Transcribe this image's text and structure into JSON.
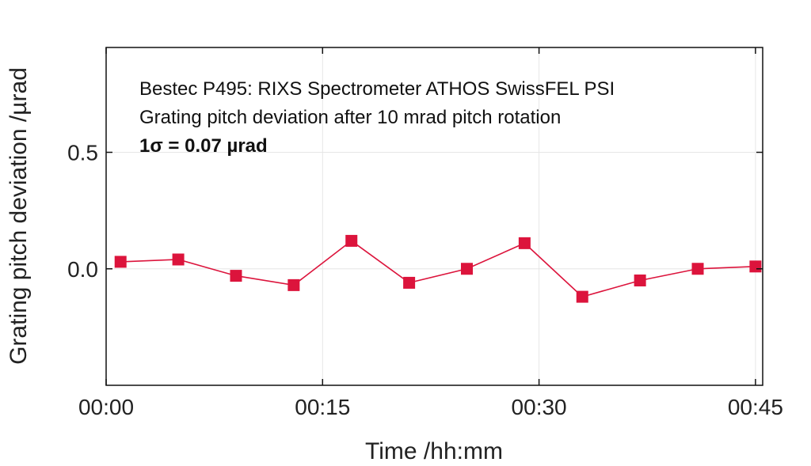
{
  "chart_data": {
    "type": "line",
    "xlabel": "Time /hh:mm",
    "ylabel": "Grating pitch deviation /µrad",
    "annotations": [
      "Bestec P495: RIXS Spectrometer ATHOS SwissFEL PSI",
      "Grating pitch deviation after 10 mrad pitch rotation",
      "1σ = 0.07 µrad"
    ],
    "xlim_minutes": [
      0,
      45.5
    ],
    "ylim": [
      -0.5,
      0.95
    ],
    "x_ticks": [
      {
        "value": 0,
        "label": "00:00"
      },
      {
        "value": 15,
        "label": "00:15"
      },
      {
        "value": 30,
        "label": "00:30"
      },
      {
        "value": 45,
        "label": "00:45"
      }
    ],
    "y_ticks": [
      {
        "value": 0.0,
        "label": "0.0"
      },
      {
        "value": 0.5,
        "label": "0.5"
      }
    ],
    "grid": true,
    "color": "#dc143c",
    "series": [
      {
        "x": [
          "00:01",
          "00:05",
          "00:09",
          "00:13",
          "00:17",
          "00:21",
          "00:25",
          "00:29",
          "00:33",
          "00:37",
          "00:41",
          "00:45"
        ],
        "x_minutes": [
          1,
          5,
          9,
          13,
          17,
          21,
          25,
          29,
          33,
          37,
          41,
          45
        ],
        "values": [
          0.03,
          0.04,
          -0.03,
          -0.07,
          0.12,
          -0.06,
          0.0,
          0.11,
          -0.12,
          -0.05,
          0.0,
          0.01
        ]
      }
    ]
  }
}
